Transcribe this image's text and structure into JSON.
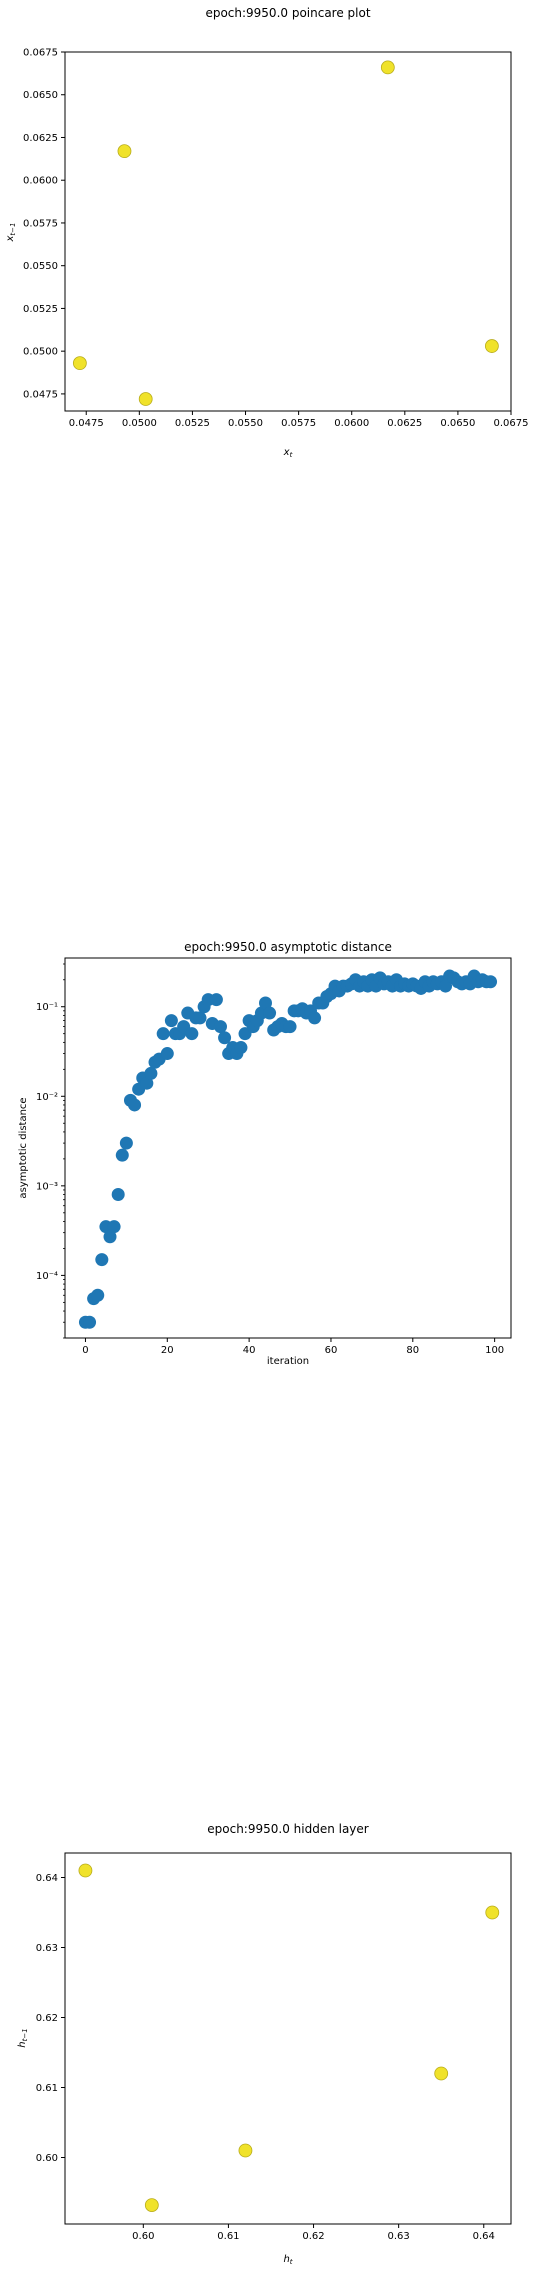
{
  "chart_data": [
    {
      "type": "scatter",
      "title": "epoch:9950.0 poincare plot",
      "xlabel": "x_t",
      "ylabel": "x_{t-1}",
      "xlim": [
        0.0465,
        0.0675
      ],
      "ylim": [
        0.0465,
        0.0675
      ],
      "xticks": [
        0.0475,
        0.05,
        0.0525,
        0.055,
        0.0575,
        0.06,
        0.0625,
        0.065,
        0.0675
      ],
      "yticks": [
        0.0475,
        0.05,
        0.0525,
        0.055,
        0.0575,
        0.06,
        0.0625,
        0.065,
        0.0675
      ],
      "xtick_labels": [
        "0.0475",
        "0.0500",
        "0.0525",
        "0.0550",
        "0.0575",
        "0.0600",
        "0.0625",
        "0.0650",
        "0.0675"
      ],
      "ytick_labels": [
        "0.0475",
        "0.0500",
        "0.0525",
        "0.0550",
        "0.0575",
        "0.0600",
        "0.0625",
        "0.0650",
        "0.0675"
      ],
      "marker_color": "#f0e22a",
      "marker_edge": "#b9ad1c",
      "x": [
        0.0472,
        0.0493,
        0.0503,
        0.0617,
        0.0666
      ],
      "y": [
        0.0493,
        0.0617,
        0.0472,
        0.0666,
        0.0503
      ]
    },
    {
      "type": "scatter",
      "title": "epoch:9950.0 asymptotic distance",
      "xlabel": "iteration",
      "ylabel": "asymptotic distance",
      "yscale": "log",
      "xlim": [
        -5,
        104
      ],
      "ylim": [
        2e-05,
        0.35
      ],
      "xticks": [
        0,
        20,
        40,
        60,
        80,
        100
      ],
      "xtick_labels": [
        "0",
        "20",
        "40",
        "60",
        "80",
        "100"
      ],
      "yticks": [
        0.0001,
        0.001,
        0.01,
        0.1
      ],
      "ytick_labels": [
        "10⁻⁴",
        "10⁻³",
        "10⁻²",
        "10⁻¹"
      ],
      "marker_color": "#1f77b4",
      "x": [
        0,
        1,
        2,
        3,
        4,
        5,
        6,
        7,
        8,
        9,
        10,
        11,
        12,
        13,
        14,
        15,
        16,
        17,
        18,
        19,
        20,
        21,
        22,
        23,
        24,
        25,
        26,
        27,
        28,
        29,
        30,
        31,
        32,
        33,
        34,
        35,
        36,
        37,
        38,
        39,
        40,
        41,
        42,
        43,
        44,
        45,
        46,
        47,
        48,
        49,
        50,
        51,
        52,
        53,
        54,
        55,
        56,
        57,
        58,
        59,
        60,
        61,
        62,
        63,
        64,
        65,
        66,
        67,
        68,
        69,
        70,
        71,
        72,
        73,
        74,
        75,
        76,
        77,
        78,
        79,
        80,
        81,
        82,
        83,
        84,
        85,
        86,
        87,
        88,
        89,
        90,
        91,
        92,
        93,
        94,
        95,
        96,
        97,
        98,
        99
      ],
      "y": [
        3e-05,
        3e-05,
        5.5e-05,
        6e-05,
        0.00015,
        0.00035,
        0.00027,
        0.00035,
        0.0008,
        0.0022,
        0.003,
        0.009,
        0.008,
        0.012,
        0.016,
        0.014,
        0.018,
        0.024,
        0.026,
        0.05,
        0.03,
        0.07,
        0.05,
        0.05,
        0.06,
        0.085,
        0.05,
        0.075,
        0.075,
        0.1,
        0.12,
        0.065,
        0.12,
        0.06,
        0.045,
        0.03,
        0.035,
        0.03,
        0.035,
        0.05,
        0.07,
        0.06,
        0.07,
        0.085,
        0.11,
        0.085,
        0.055,
        0.06,
        0.065,
        0.06,
        0.06,
        0.09,
        0.09,
        0.095,
        0.085,
        0.09,
        0.075,
        0.11,
        0.11,
        0.13,
        0.14,
        0.17,
        0.15,
        0.17,
        0.17,
        0.18,
        0.2,
        0.17,
        0.19,
        0.17,
        0.2,
        0.17,
        0.21,
        0.18,
        0.19,
        0.17,
        0.2,
        0.17,
        0.18,
        0.17,
        0.18,
        0.17,
        0.16,
        0.19,
        0.17,
        0.19,
        0.18,
        0.19,
        0.17,
        0.22,
        0.21,
        0.19,
        0.18,
        0.19,
        0.18,
        0.22,
        0.19,
        0.2,
        0.19,
        0.19
      ]
    },
    {
      "type": "scatter",
      "title": "epoch:9950.0 hidden layer",
      "xlabel": "h_t",
      "ylabel": "h_{t-1}",
      "xlim": [
        0.5908,
        0.6432
      ],
      "ylim": [
        0.5905,
        0.6435
      ],
      "xticks": [
        0.6,
        0.61,
        0.62,
        0.63,
        0.64
      ],
      "xtick_labels": [
        "0.60",
        "0.61",
        "0.62",
        "0.63",
        "0.64"
      ],
      "yticks": [
        0.6,
        0.61,
        0.62,
        0.63,
        0.64
      ],
      "ytick_labels": [
        "0.60",
        "0.61",
        "0.62",
        "0.63",
        "0.64"
      ],
      "marker_color": "#f0e22a",
      "marker_edge": "#b9ad1c",
      "x": [
        0.5932,
        0.601,
        0.612,
        0.635,
        0.641
      ],
      "y": [
        0.641,
        0.5932,
        0.601,
        0.612,
        0.635
      ]
    }
  ]
}
